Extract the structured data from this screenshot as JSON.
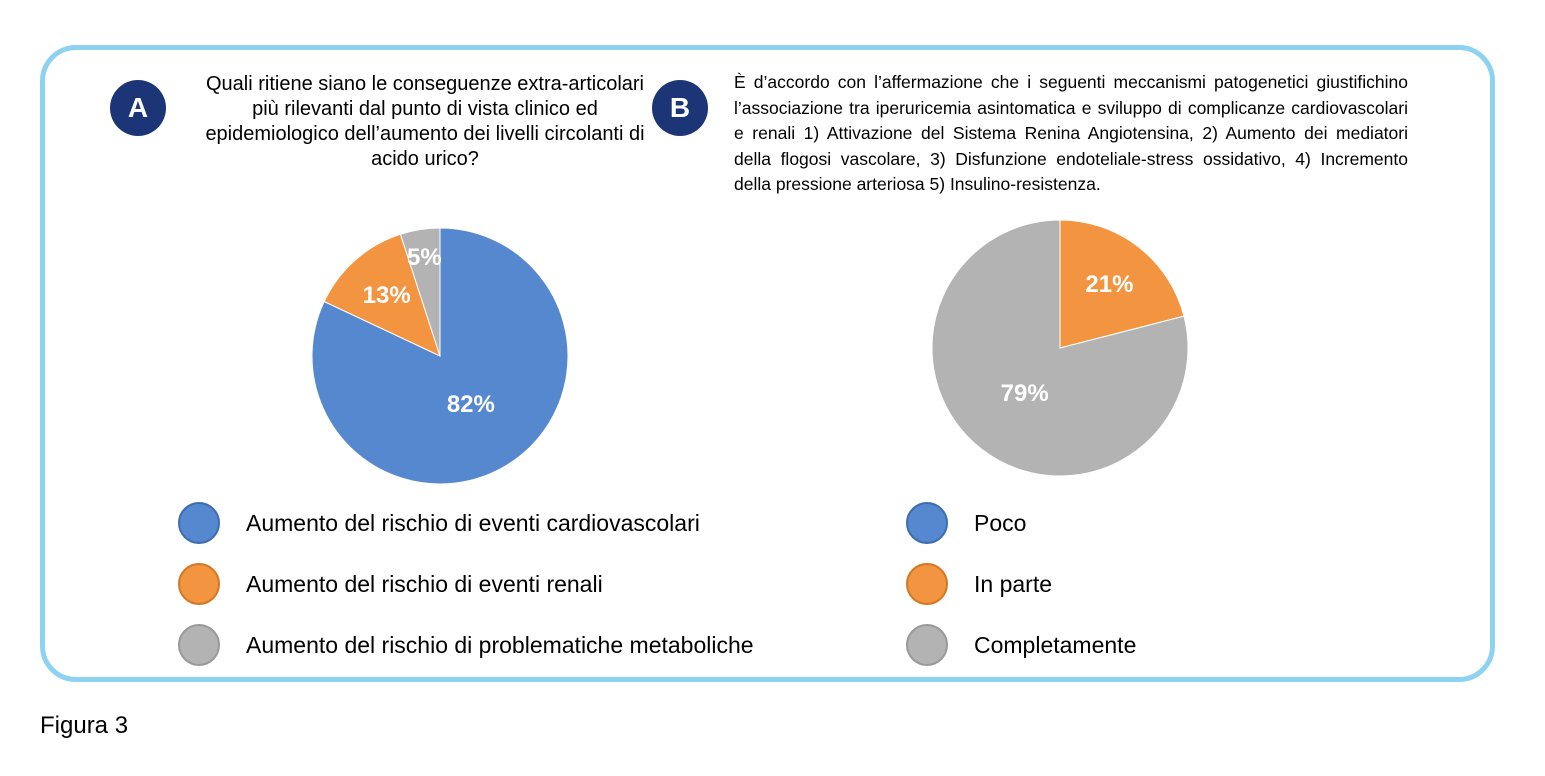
{
  "panel_a": {
    "badge": "A",
    "question": "Quali ritiene siano le conseguenze extra-articolari più rilevanti dal punto di vista clinico ed epidemiologico dell’aumento dei livelli circolanti di acido urico?"
  },
  "panel_b": {
    "badge": "B",
    "question": "È d’accordo con l’affermazione che i seguenti meccanismi patogenetici giustifichino l’associazione tra iperuricemia asintomatica e sviluppo di complicanze cardiovascolari e renali 1) Attivazione del Sistema Renina Angiotensina, 2) Aumento dei mediatori della flogosi vascolare, 3) Disfunzione endoteliale-stress ossidativo, 4) Incremento della pressione arteriosa 5) Insulino-resistenza."
  },
  "chart_data": [
    {
      "type": "pie",
      "start": "12 o'clock, clockwise",
      "slices": [
        {
          "label": "Aumento del rischio di eventi cardiovascolari",
          "value": 82,
          "value_label": "82%",
          "color": "#5688d0",
          "border": "#3d6cb0"
        },
        {
          "label": "Aumento del rischio di eventi renali",
          "value": 13,
          "value_label": "13%",
          "color": "#f29440",
          "border": "#d27722"
        },
        {
          "label": "Aumento del rischio di problematiche metaboliche",
          "value": 5,
          "value_label": "5%",
          "color": "#b3b3b3",
          "border": "#999999"
        }
      ]
    },
    {
      "type": "pie",
      "start": "12 o'clock, clockwise",
      "slices": [
        {
          "label": "Poco",
          "value": 0,
          "value_label": "",
          "color": "#5688d0",
          "border": "#3d6cb0"
        },
        {
          "label": "In parte",
          "value": 21,
          "value_label": "21%",
          "color": "#f29440",
          "border": "#d27722"
        },
        {
          "label": "Completamente",
          "value": 79,
          "value_label": "79%",
          "color": "#b3b3b3",
          "border": "#999999"
        }
      ]
    }
  ],
  "caption": "Figura 3"
}
